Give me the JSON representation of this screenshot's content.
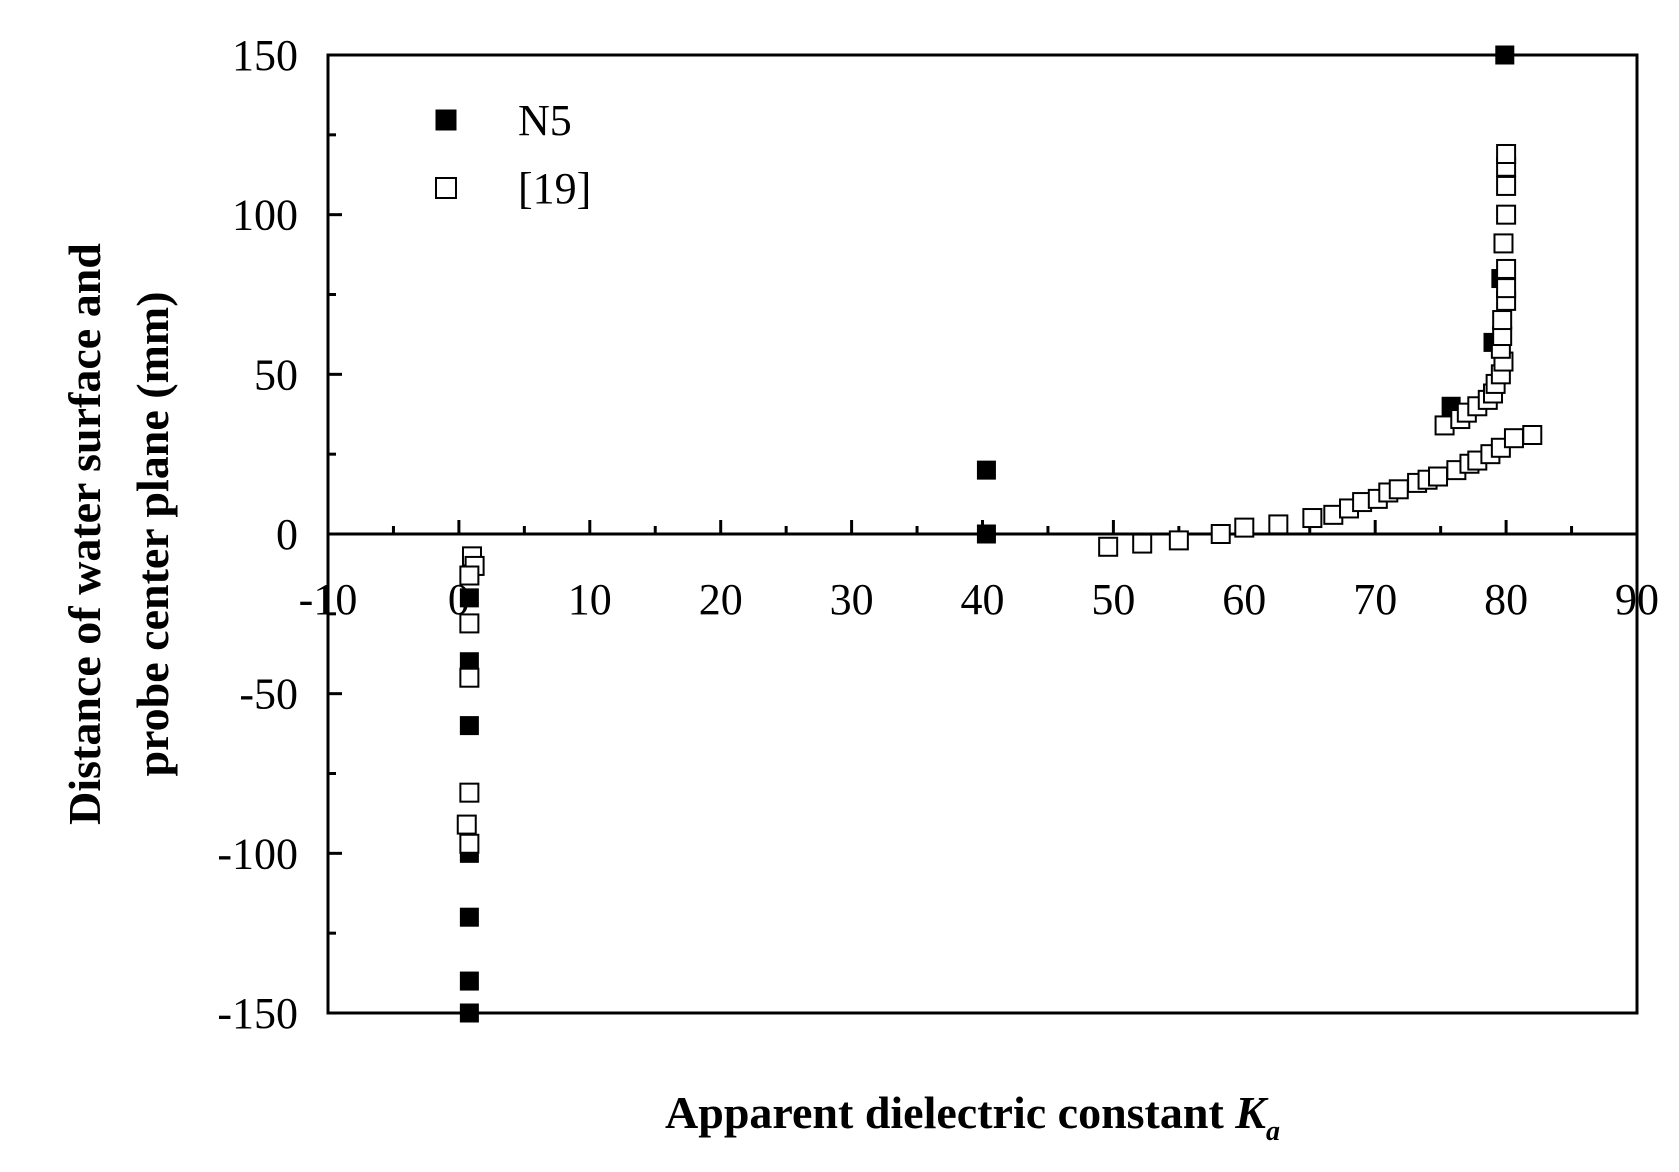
{
  "chart_data": {
    "type": "scatter",
    "title": "",
    "xlabel": "Apparent dielectric constant ",
    "xlabel_symbol": "K",
    "xlabel_subscript": "a",
    "ylabel_line1": "Distance of water surface and",
    "ylabel_line2": "probe center plane (mm)",
    "xlim": [
      -10,
      90
    ],
    "ylim": [
      -150,
      150
    ],
    "x_ticks": [
      -10,
      0,
      10,
      20,
      30,
      40,
      50,
      60,
      70,
      80,
      90
    ],
    "y_ticks": [
      -150,
      -100,
      -50,
      0,
      50,
      100,
      150
    ],
    "x_tick_labels": [
      "-10",
      "0",
      "10",
      "20",
      "30",
      "40",
      "50",
      "60",
      "70",
      "80",
      "90"
    ],
    "y_tick_labels": [
      "-150",
      "-100",
      "-50",
      "0",
      "50",
      "100",
      "150"
    ],
    "legend_position": "top-left",
    "grid": false,
    "series": [
      {
        "name": "N5",
        "marker": "filled-square",
        "color": "#000000",
        "points": [
          [
            0.8,
            -20
          ],
          [
            0.8,
            -40
          ],
          [
            0.8,
            -60
          ],
          [
            0.8,
            -100
          ],
          [
            0.8,
            -120
          ],
          [
            0.8,
            -140
          ],
          [
            0.8,
            -150
          ],
          [
            40.3,
            20
          ],
          [
            40.3,
            0
          ],
          [
            75.8,
            40
          ],
          [
            79.0,
            60
          ],
          [
            79.6,
            80
          ],
          [
            79.9,
            150
          ]
        ]
      },
      {
        "name": "[19]",
        "marker": "open-square",
        "color": "#000000",
        "points": [
          [
            1.0,
            -7
          ],
          [
            1.2,
            -10
          ],
          [
            0.8,
            -13
          ],
          [
            0.8,
            -28
          ],
          [
            0.8,
            -45
          ],
          [
            0.8,
            -81
          ],
          [
            0.6,
            -91
          ],
          [
            0.8,
            -97
          ],
          [
            49.6,
            -4
          ],
          [
            52.2,
            -3
          ],
          [
            55.0,
            -2
          ],
          [
            58.2,
            0
          ],
          [
            60.0,
            2
          ],
          [
            62.6,
            3
          ],
          [
            65.2,
            5
          ],
          [
            66.8,
            6
          ],
          [
            68.0,
            8
          ],
          [
            69.0,
            10
          ],
          [
            70.2,
            11
          ],
          [
            71.0,
            13
          ],
          [
            71.8,
            14
          ],
          [
            73.2,
            16
          ],
          [
            74.0,
            17
          ],
          [
            74.8,
            18
          ],
          [
            76.2,
            20
          ],
          [
            77.2,
            22
          ],
          [
            77.8,
            23
          ],
          [
            78.8,
            25
          ],
          [
            79.6,
            27
          ],
          [
            80.6,
            30
          ],
          [
            82.0,
            31
          ],
          [
            75.3,
            34
          ],
          [
            76.5,
            36
          ],
          [
            77.0,
            38
          ],
          [
            77.8,
            40
          ],
          [
            78.6,
            42
          ],
          [
            79.0,
            44
          ],
          [
            79.2,
            47
          ],
          [
            79.6,
            50
          ],
          [
            79.8,
            54
          ],
          [
            79.6,
            58
          ],
          [
            79.7,
            62
          ],
          [
            79.7,
            67
          ],
          [
            80.0,
            73
          ],
          [
            80.0,
            77
          ],
          [
            80.0,
            83
          ],
          [
            79.8,
            91
          ],
          [
            80.0,
            100
          ],
          [
            80.0,
            109
          ],
          [
            80.0,
            115
          ],
          [
            80.0,
            119
          ]
        ]
      }
    ]
  }
}
